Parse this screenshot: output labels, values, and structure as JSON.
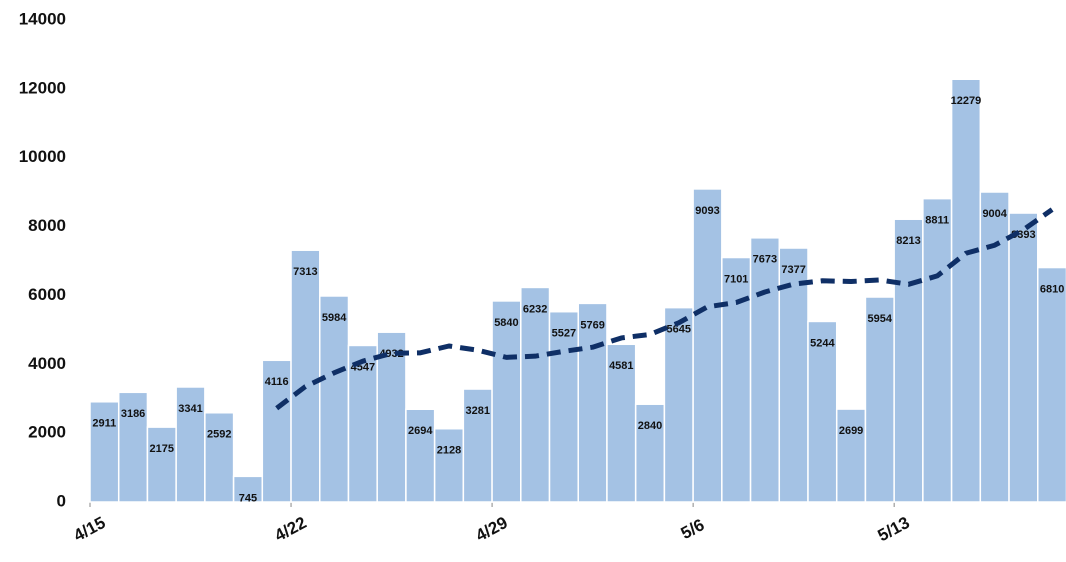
{
  "chart_data": {
    "type": "bar",
    "categories": [
      "4/15",
      null,
      null,
      null,
      null,
      null,
      null,
      "4/22",
      null,
      null,
      null,
      null,
      null,
      null,
      "4/29",
      null,
      null,
      null,
      null,
      null,
      null,
      "5/6",
      null,
      null,
      null,
      null,
      null,
      null,
      "5/13",
      null,
      null,
      null,
      null,
      null
    ],
    "series": [
      {
        "type": "bar",
        "color": "#a4c2e4",
        "values": [
          2911,
          3186,
          2175,
          3341,
          2592,
          745,
          4116,
          7313,
          5984,
          4547,
          4932,
          2694,
          2128,
          3281,
          5840,
          6232,
          5527,
          5769,
          4581,
          2840,
          5645,
          9093,
          7101,
          7673,
          7377,
          5244,
          2699,
          5954,
          8213,
          8811,
          12279,
          9004,
          8393,
          6810
        ]
      },
      {
        "type": "line",
        "color": "#0f2f66",
        "values": [
          null,
          null,
          null,
          null,
          null,
          null,
          2724,
          3353,
          3752,
          4091,
          4318,
          4333,
          4531,
          4411,
          4201,
          4236,
          4376,
          4496,
          4765,
          4867,
          5205,
          5670,
          5794,
          6100,
          6330,
          6425,
          6405,
          6449,
          6323,
          6567,
          7225,
          7458,
          7907,
          8494
        ]
      }
    ],
    "ylim": [
      0,
      14000
    ],
    "yticks": [
      0,
      2000,
      4000,
      6000,
      8000,
      10000,
      12000,
      14000
    ],
    "grid": false
  }
}
